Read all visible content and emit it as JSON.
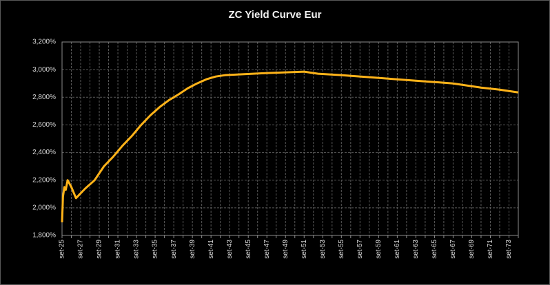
{
  "chart_data": {
    "type": "line",
    "title": "ZC Yield Curve Eur",
    "x": [
      2025.0,
      2025.1,
      2025.25,
      2025.4,
      2025.6,
      2026.0,
      2026.5,
      2027.5,
      2028.5,
      2029.5,
      2030.5,
      2031.5,
      2032.5,
      2033.5,
      2034.5,
      2035.5,
      2036.5,
      2037.5,
      2038.5,
      2039.5,
      2040.5,
      2041.5,
      2042.5,
      2044.0,
      2045.5,
      2047.0,
      2049.0,
      2051.0,
      2052.5,
      2055.0,
      2058.0,
      2061.0,
      2064.0,
      2067.0,
      2070.0,
      2072.0,
      2074.0
    ],
    "series": [
      {
        "name": "ZC Yield Curve Eur",
        "color": "#ffb319",
        "values": [
          1.895,
          2.08,
          2.15,
          2.13,
          2.2,
          2.15,
          2.07,
          2.14,
          2.2,
          2.3,
          2.37,
          2.45,
          2.52,
          2.6,
          2.67,
          2.73,
          2.78,
          2.82,
          2.865,
          2.9,
          2.93,
          2.95,
          2.96,
          2.965,
          2.97,
          2.975,
          2.98,
          2.985,
          2.97,
          2.96,
          2.945,
          2.93,
          2.915,
          2.9,
          2.87,
          2.855,
          2.835
        ]
      }
    ],
    "xlim": [
      2025,
      2074
    ],
    "xticks": [
      {
        "value": 2025,
        "label": "set-25"
      },
      {
        "value": 2027,
        "label": "set-27"
      },
      {
        "value": 2029,
        "label": "set-29"
      },
      {
        "value": 2031,
        "label": "set-31"
      },
      {
        "value": 2033,
        "label": "set-33"
      },
      {
        "value": 2035,
        "label": "set-35"
      },
      {
        "value": 2037,
        "label": "set-37"
      },
      {
        "value": 2039,
        "label": "set-39"
      },
      {
        "value": 2041,
        "label": "set-41"
      },
      {
        "value": 2043,
        "label": "set-43"
      },
      {
        "value": 2045,
        "label": "set-45"
      },
      {
        "value": 2047,
        "label": "set-47"
      },
      {
        "value": 2049,
        "label": "set-49"
      },
      {
        "value": 2051,
        "label": "set-51"
      },
      {
        "value": 2053,
        "label": "set-53"
      },
      {
        "value": 2055,
        "label": "set-55"
      },
      {
        "value": 2057,
        "label": "set-57"
      },
      {
        "value": 2059,
        "label": "set-59"
      },
      {
        "value": 2061,
        "label": "set-61"
      },
      {
        "value": 2063,
        "label": "set-63"
      },
      {
        "value": 2065,
        "label": "set-65"
      },
      {
        "value": 2067,
        "label": "set-67"
      },
      {
        "value": 2069,
        "label": "set-69"
      },
      {
        "value": 2071,
        "label": "set-71"
      },
      {
        "value": 2073,
        "label": "set-73"
      }
    ],
    "xminorticks": [
      2026,
      2028,
      2030,
      2032,
      2034,
      2036,
      2038,
      2040,
      2042,
      2044,
      2046,
      2048,
      2050,
      2052,
      2054,
      2056,
      2058,
      2060,
      2062,
      2064,
      2066,
      2068,
      2070,
      2072,
      2074
    ],
    "ylim": [
      1.8,
      3.2
    ],
    "yticks": [
      {
        "value": 1.8,
        "label": "1,800%"
      },
      {
        "value": 2.0,
        "label": "2,000%"
      },
      {
        "value": 2.2,
        "label": "2,200%"
      },
      {
        "value": 2.4,
        "label": "2,400%"
      },
      {
        "value": 2.6,
        "label": "2,600%"
      },
      {
        "value": 2.8,
        "label": "2,800%"
      },
      {
        "value": 3.0,
        "label": "3,000%"
      },
      {
        "value": 3.2,
        "label": "3,200%"
      }
    ],
    "grid": true
  }
}
